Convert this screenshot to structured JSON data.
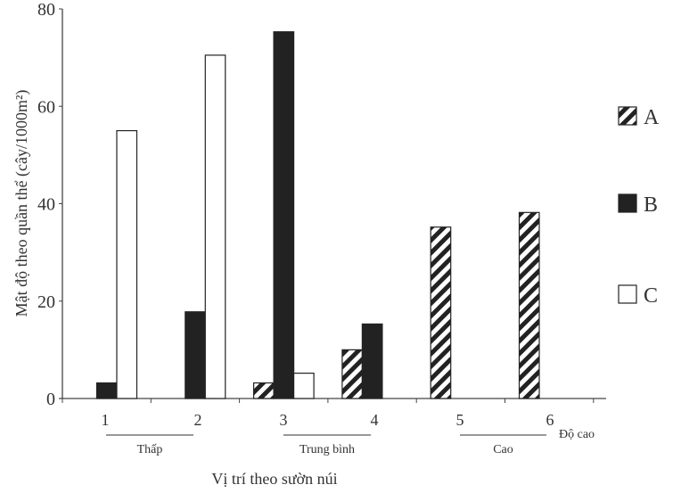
{
  "chart_data": {
    "type": "bar",
    "title": "",
    "ylabel": "Mật độ theo quần thể (cây/1000m²)",
    "xlabel": "Vị trí theo sườn núi",
    "ylim": [
      0,
      80
    ],
    "yticks": [
      "0",
      "20",
      "40",
      "60",
      "80"
    ],
    "categories": [
      "1",
      "2",
      "3",
      "4",
      "5",
      "6"
    ],
    "x_end_label": "Độ cao",
    "groups": [
      {
        "label": "Thấp",
        "from": "1",
        "to": "2"
      },
      {
        "label": "Trung bình",
        "from": "3",
        "to": "4"
      },
      {
        "label": "Cao",
        "from": "5",
        "to": "6"
      }
    ],
    "grid": false,
    "legend_position": "right",
    "series": [
      {
        "name": "A",
        "pattern": "diagonal-hatch",
        "values": [
          0,
          0,
          3.2,
          10,
          35.2,
          38.2
        ]
      },
      {
        "name": "B",
        "pattern": "solid-black",
        "color": "#222222",
        "values": [
          3.2,
          17.8,
          75.3,
          15.3,
          0,
          0
        ]
      },
      {
        "name": "C",
        "pattern": "white",
        "color": "#ffffff",
        "values": [
          55,
          70.5,
          5.2,
          0,
          0,
          0
        ]
      }
    ]
  }
}
